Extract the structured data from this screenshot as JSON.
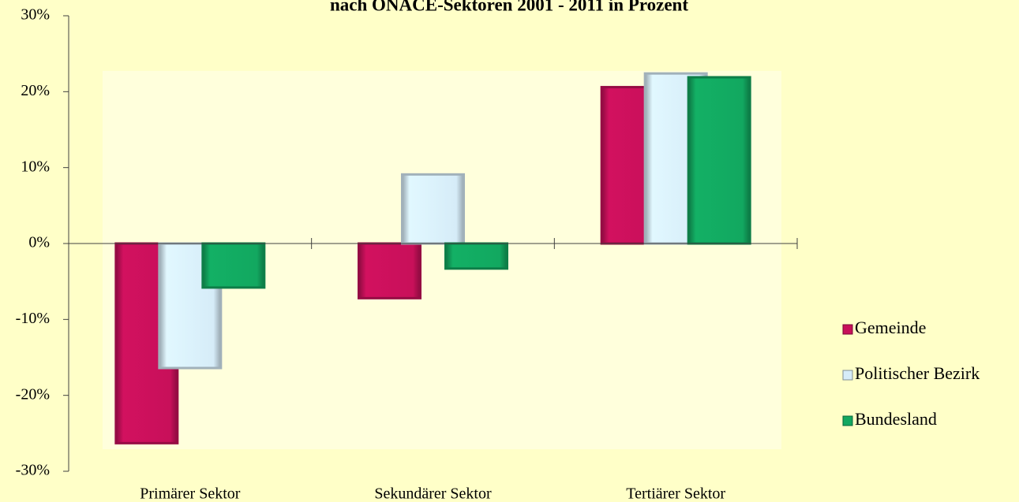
{
  "chart_data": {
    "type": "bar",
    "title": "nach ÖNACE-Sektoren 2001 - 2011 in Prozent",
    "categories": [
      "Primärer Sektor",
      "Sekundärer Sektor",
      "Tertiärer Sektor"
    ],
    "series": [
      {
        "name": "Gemeinde",
        "color": "#c8105a",
        "values": [
          -26.3,
          -7.2,
          20.6
        ]
      },
      {
        "name": "Politischer Bezirk",
        "color": "#d6ecf8",
        "values": [
          -16.4,
          9.1,
          22.4
        ]
      },
      {
        "name": "Bundesland",
        "color": "#12a860",
        "values": [
          -5.8,
          -3.3,
          21.9
        ]
      }
    ],
    "ylim": [
      -30,
      30
    ],
    "yticks": [
      {
        "value": -30,
        "label": "-30%"
      },
      {
        "value": -20,
        "label": "-20%"
      },
      {
        "value": -10,
        "label": "-10%"
      },
      {
        "value": 0,
        "label": "0%"
      },
      {
        "value": 10,
        "label": "10%"
      },
      {
        "value": 20,
        "label": "20%"
      },
      {
        "value": 30,
        "label": "30%"
      }
    ],
    "legend": "right",
    "grid": false
  }
}
